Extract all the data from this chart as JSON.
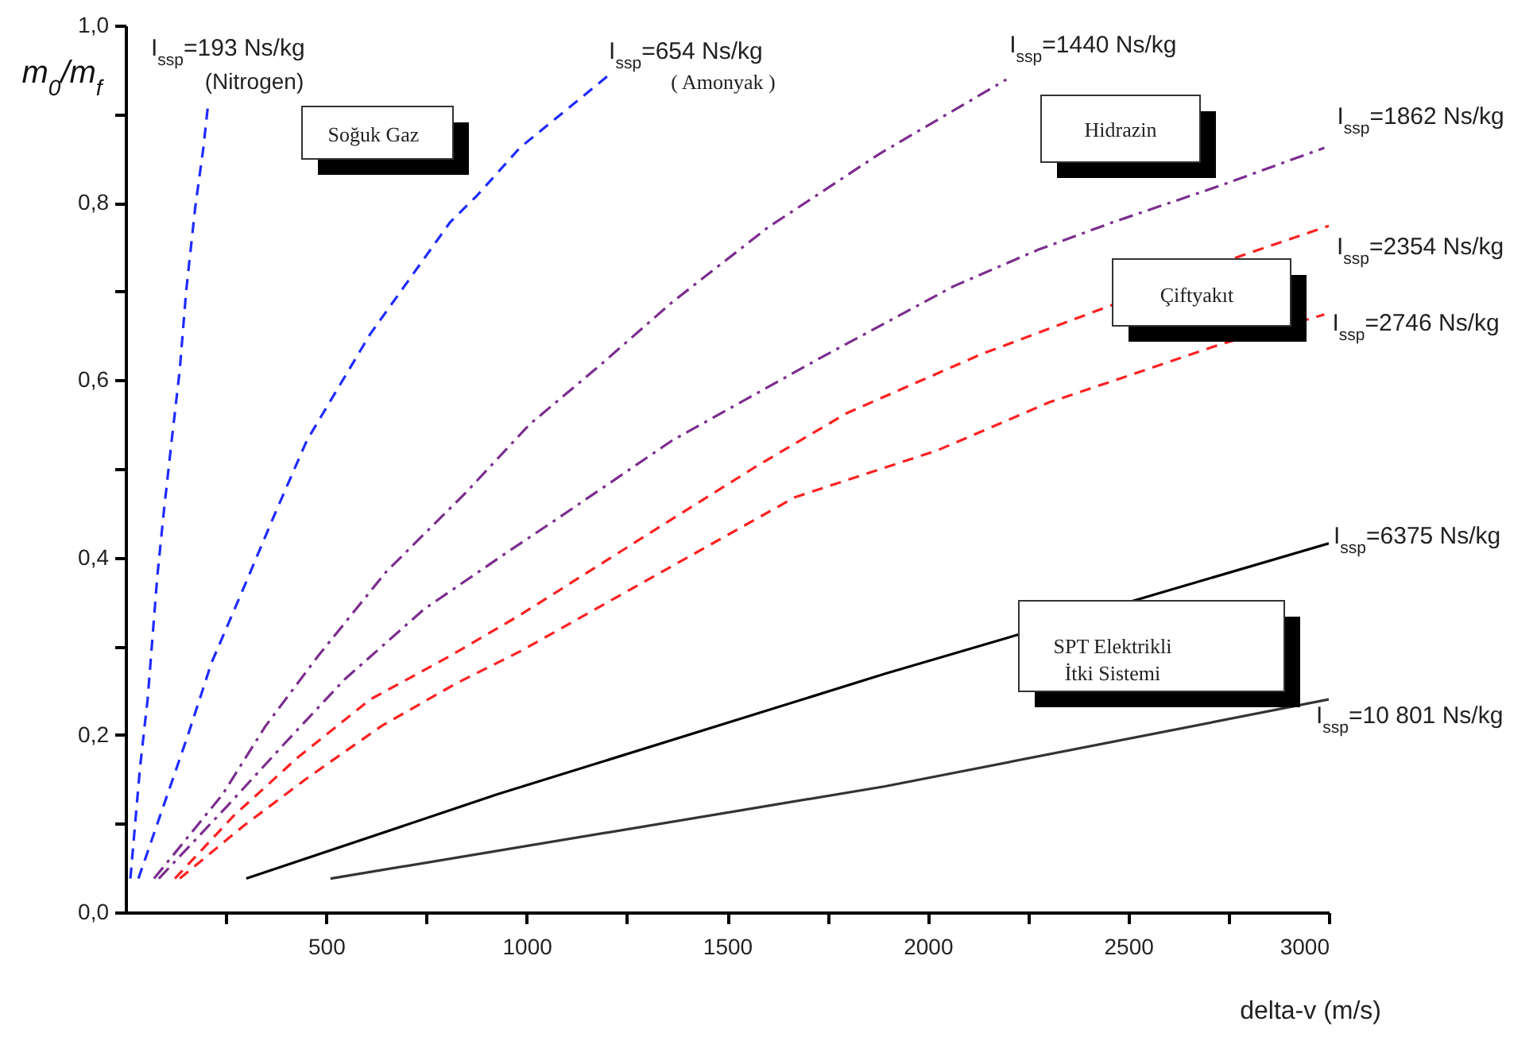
{
  "chart_data": {
    "type": "line",
    "xlabel": "delta-v (m/s)",
    "ylabel": "m$_{0}$/m$_{f}$",
    "xlim": [
      0,
      3000
    ],
    "ylim": [
      0,
      1
    ],
    "xticks": [
      {
        "value": 250,
        "label": null
      },
      500,
      {
        "value": 750,
        "label": null
      },
      1000,
      {
        "value": 1250,
        "label": null
      },
      1500,
      {
        "value": 1750,
        "label": null
      },
      2000,
      {
        "value": 2250,
        "label": null
      },
      2500,
      {
        "value": 2750,
        "label": null
      },
      3000
    ],
    "yticks": [
      {
        "value": 0,
        "label": "0,0"
      },
      {
        "value": 0.1,
        "label": null
      },
      {
        "value": 0.2,
        "label": "0,2"
      },
      {
        "value": 0.3,
        "label": null
      },
      {
        "value": 0.4,
        "label": "0,4"
      },
      {
        "value": 0.5,
        "label": null
      },
      {
        "value": 0.6,
        "label": "0,6"
      },
      {
        "value": 0.7,
        "label": null
      },
      {
        "value": 0.8,
        "label": "0,8"
      },
      {
        "value": 0.9,
        "label": null
      },
      {
        "value": 1,
        "label": "1,0"
      }
    ],
    "series": [
      {
        "name": "I$_{ssp}$=193 Ns/kg",
        "color": "#1f2bff",
        "line_style": "dashed",
        "x": [
          12,
          36,
          55,
          79,
          95,
          115,
          135,
          151,
          174,
          194,
          206
        ],
        "values": [
          0.038,
          0.163,
          0.24,
          0.378,
          0.45,
          0.532,
          0.611,
          0.7,
          0.796,
          0.862,
          0.912
        ]
      },
      {
        "name": "I$_{ssp}$=654 Ns/kg",
        "color": "#1f2bff",
        "line_style": "dashed",
        "x": [
          32,
          155,
          214,
          289,
          373,
          452,
          610,
          809,
          876,
          983,
          1205
        ],
        "values": [
          0.038,
          0.199,
          0.281,
          0.36,
          0.45,
          0.532,
          0.652,
          0.778,
          0.808,
          0.862,
          0.944
        ]
      },
      {
        "name": "I$_{ssp}$=1440 Ns/kg",
        "color": "#7b2d8e",
        "line_style": "dashdot",
        "x": [
          71,
          242,
          349,
          480,
          650,
          848,
          1007,
          1181,
          1363,
          1601,
          1879,
          2196
        ],
        "values": [
          0.038,
          0.133,
          0.21,
          0.289,
          0.384,
          0.473,
          0.55,
          0.616,
          0.688,
          0.772,
          0.855,
          0.939
        ]
      },
      {
        "name": "I$_{ssp}$=1862 Ns/kg",
        "color": "#7b2d8e",
        "line_style": "dashdot",
        "x": [
          83,
          254,
          400,
          547,
          745,
          955,
          1074,
          1363,
          1720,
          2065,
          2275,
          2461,
          2727,
          2989
        ],
        "values": [
          0.038,
          0.12,
          0.192,
          0.263,
          0.342,
          0.407,
          0.443,
          0.532,
          0.622,
          0.706,
          0.747,
          0.778,
          0.819,
          0.862
        ]
      },
      {
        "name": "I$_{ssp}$=2354 Ns/kg",
        "color": "#ff2020",
        "line_style": "dashed",
        "x": [
          123,
          270,
          428,
          610,
          809,
          983,
          1340,
          1577,
          1799,
          2132,
          2461,
          2767,
          3000
        ],
        "values": [
          0.038,
          0.109,
          0.174,
          0.24,
          0.289,
          0.335,
          0.437,
          0.504,
          0.563,
          0.629,
          0.685,
          0.738,
          0.774
        ]
      },
      {
        "name": "I$_{ssp}$=2746 Ns/kg",
        "color": "#ff2020",
        "line_style": "dashed",
        "x": [
          135,
          293,
          452,
          638,
          824,
          983,
          1669,
          2025,
          2303,
          2461,
          2727,
          2989
        ],
        "values": [
          0.038,
          0.097,
          0.151,
          0.21,
          0.258,
          0.294,
          0.468,
          0.521,
          0.575,
          0.599,
          0.64,
          0.674
        ]
      },
      {
        "name": "I$_{ssp}$=6375 Ns/kg",
        "color": "#000000",
        "line_style": "solid",
        "x": [
          301,
          927,
          1894,
          3000
        ],
        "values": [
          0.038,
          0.133,
          0.269,
          0.416
        ]
      },
      {
        "name": "I$_{ssp}$=10 801 Ns/kg",
        "color": "#333333",
        "line_style": "solid",
        "x": [
          511,
          1894,
          3000
        ],
        "values": [
          0.038,
          0.142,
          0.24
        ]
      }
    ],
    "annotations": [
      "(Nitrogen)",
      "Soğuk Gaz",
      "( Amonyak )",
      "Hidrazin",
      "Çiftyakıt",
      "SPT Elektrikli\nİtki Sistemi"
    ]
  }
}
